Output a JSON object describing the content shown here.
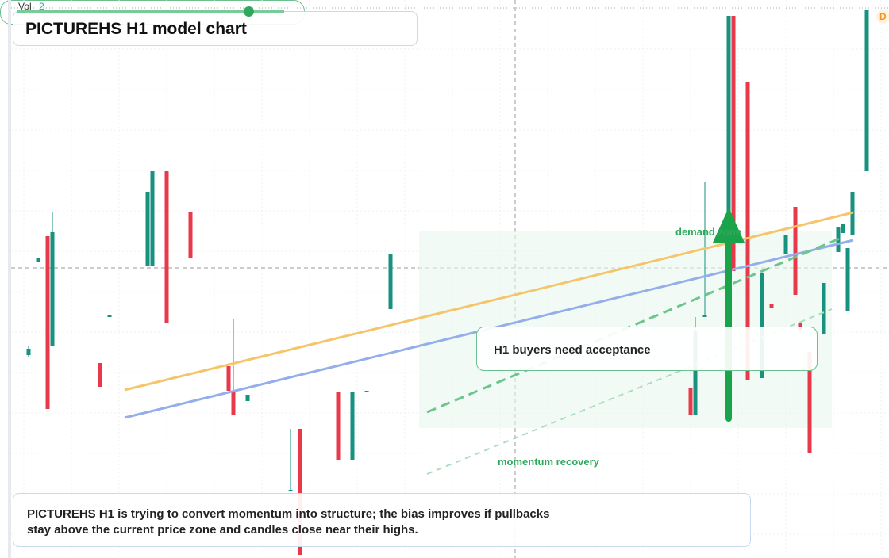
{
  "chart_data": {
    "type": "candlestick",
    "title": "PICTUREHS H1 model chart",
    "volume_label": "Vol",
    "volume_value": "2",
    "badge": "D",
    "zone_label": "demand zone",
    "callout": "H1 buyers need acceptance",
    "indicator_label": "momentum recovery",
    "note": [
      "PICTUREHS H1 is trying to convert momentum into structure; the bias improves if pullbacks",
      "stay above the current price zone and candles close near their highs."
    ],
    "up_color": "#16927f",
    "down_color": "#e8394a",
    "xlim": [
      0,
      184
    ],
    "ylim": [
      0,
      704
    ],
    "x": [
      4,
      6,
      8,
      9,
      19,
      21,
      29,
      30,
      33,
      38,
      46,
      47,
      50,
      59,
      61,
      69,
      72,
      75,
      80,
      143,
      144,
      146,
      151,
      152,
      155,
      158,
      160,
      163,
      165,
      166,
      168,
      171,
      174,
      175,
      176,
      177,
      180
    ],
    "open": [
      256,
      374,
      406,
      268,
      246,
      304,
      368,
      368,
      488,
      437,
      242,
      211,
      198,
      84,
      163,
      209,
      124,
      211,
      314,
      214,
      181,
      304,
      174,
      684,
      601,
      227,
      321,
      384,
      443,
      296,
      260,
      283,
      386,
      410,
      311,
      408,
      488
    ],
    "high": [
      268,
      378,
      406,
      437,
      246,
      307,
      462,
      488,
      488,
      437,
      242,
      301,
      206,
      163,
      163,
      209,
      209,
      211,
      383,
      214,
      304,
      475,
      684,
      684,
      601,
      359,
      321,
      408,
      443,
      296,
      260,
      347,
      418,
      422,
      391,
      462,
      692
    ],
    "low": [
      254,
      374,
      188,
      268,
      216,
      304,
      368,
      368,
      296,
      378,
      211,
      181,
      198,
      84,
      4,
      124,
      124,
      209,
      314,
      181,
      181,
      304,
      174,
      362,
      224,
      227,
      316,
      384,
      332,
      286,
      132,
      283,
      386,
      410,
      311,
      408,
      488
    ],
    "close": [
      264,
      378,
      188,
      411,
      216,
      307,
      462,
      488,
      296,
      378,
      211,
      181,
      206,
      86,
      4,
      124,
      209,
      209,
      383,
      181,
      286,
      306,
      684,
      362,
      224,
      359,
      316,
      408,
      332,
      286,
      132,
      347,
      418,
      422,
      391,
      462,
      692
    ]
  }
}
